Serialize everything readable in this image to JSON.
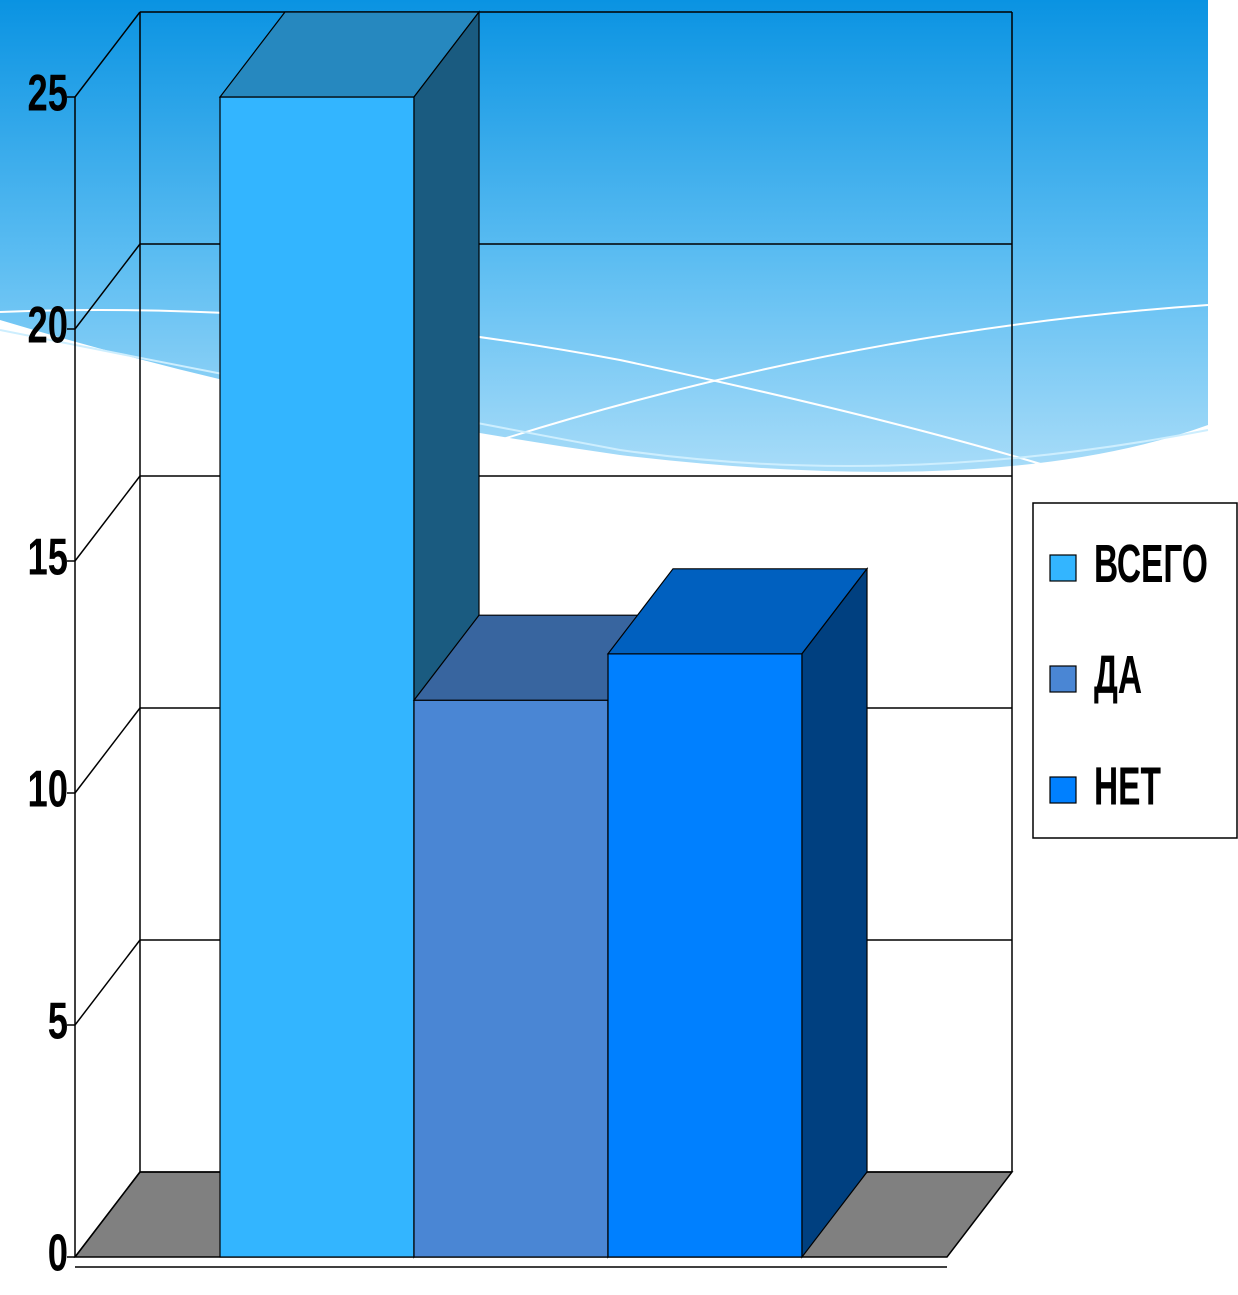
{
  "chart_data": {
    "type": "bar",
    "categories": [
      null
    ],
    "series": [
      {
        "name": "ВСЕГО",
        "color": "#33b5ff",
        "values": [
          25
        ]
      },
      {
        "name": "ДА",
        "color": "#4a86d4",
        "values": [
          12
        ]
      },
      {
        "name": "НЕТ",
        "color": "#0080ff",
        "values": [
          13
        ]
      }
    ],
    "ylim": [
      0,
      25
    ],
    "yticks": [
      0,
      5,
      10,
      15,
      20,
      25
    ],
    "grid": true,
    "legend": "right"
  }
}
